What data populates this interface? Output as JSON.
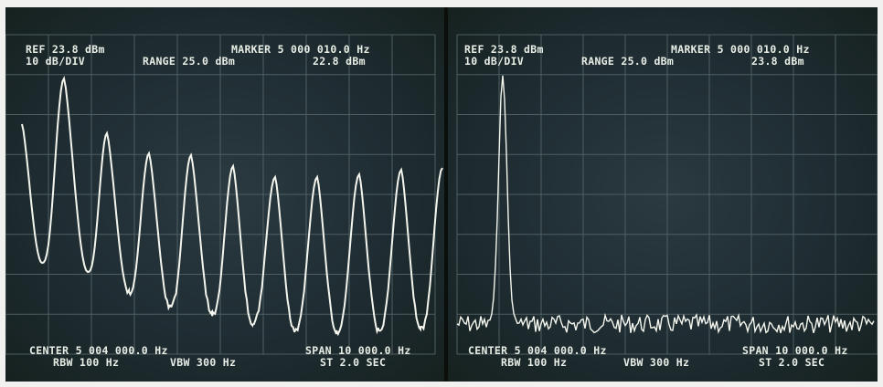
{
  "panels": [
    {
      "ref": "REF 23.8 dBm",
      "scale": "10 dB/DIV",
      "range": "RANGE 25.0 dBm",
      "marker": "MARKER 5 000 010.0 Hz",
      "marker_level": "22.8 dBm",
      "center": "CENTER 5 004 000.0 Hz",
      "span": "SPAN 10 000.0 Hz",
      "rbw": "RBW 100 Hz",
      "vbw": "VBW 300 Hz",
      "sweep": "ST 2.0 SEC"
    },
    {
      "ref": "REF 23.8 dBm",
      "scale": "10 dB/DIV",
      "range": "RANGE 25.0 dBm",
      "marker": "MARKER 5 000 010.0 Hz",
      "marker_level": "23.8 dBm",
      "center": "CENTER 5 004 000.0 Hz",
      "span": "SPAN 10 000.0 Hz",
      "rbw": "RBW 100 Hz",
      "vbw": "VBW 300 Hz",
      "sweep": "ST 2.0 SEC"
    }
  ],
  "colors": {
    "trace": "#f4f6ee",
    "grid": "#4e5e62",
    "screen": "#22313a"
  }
}
